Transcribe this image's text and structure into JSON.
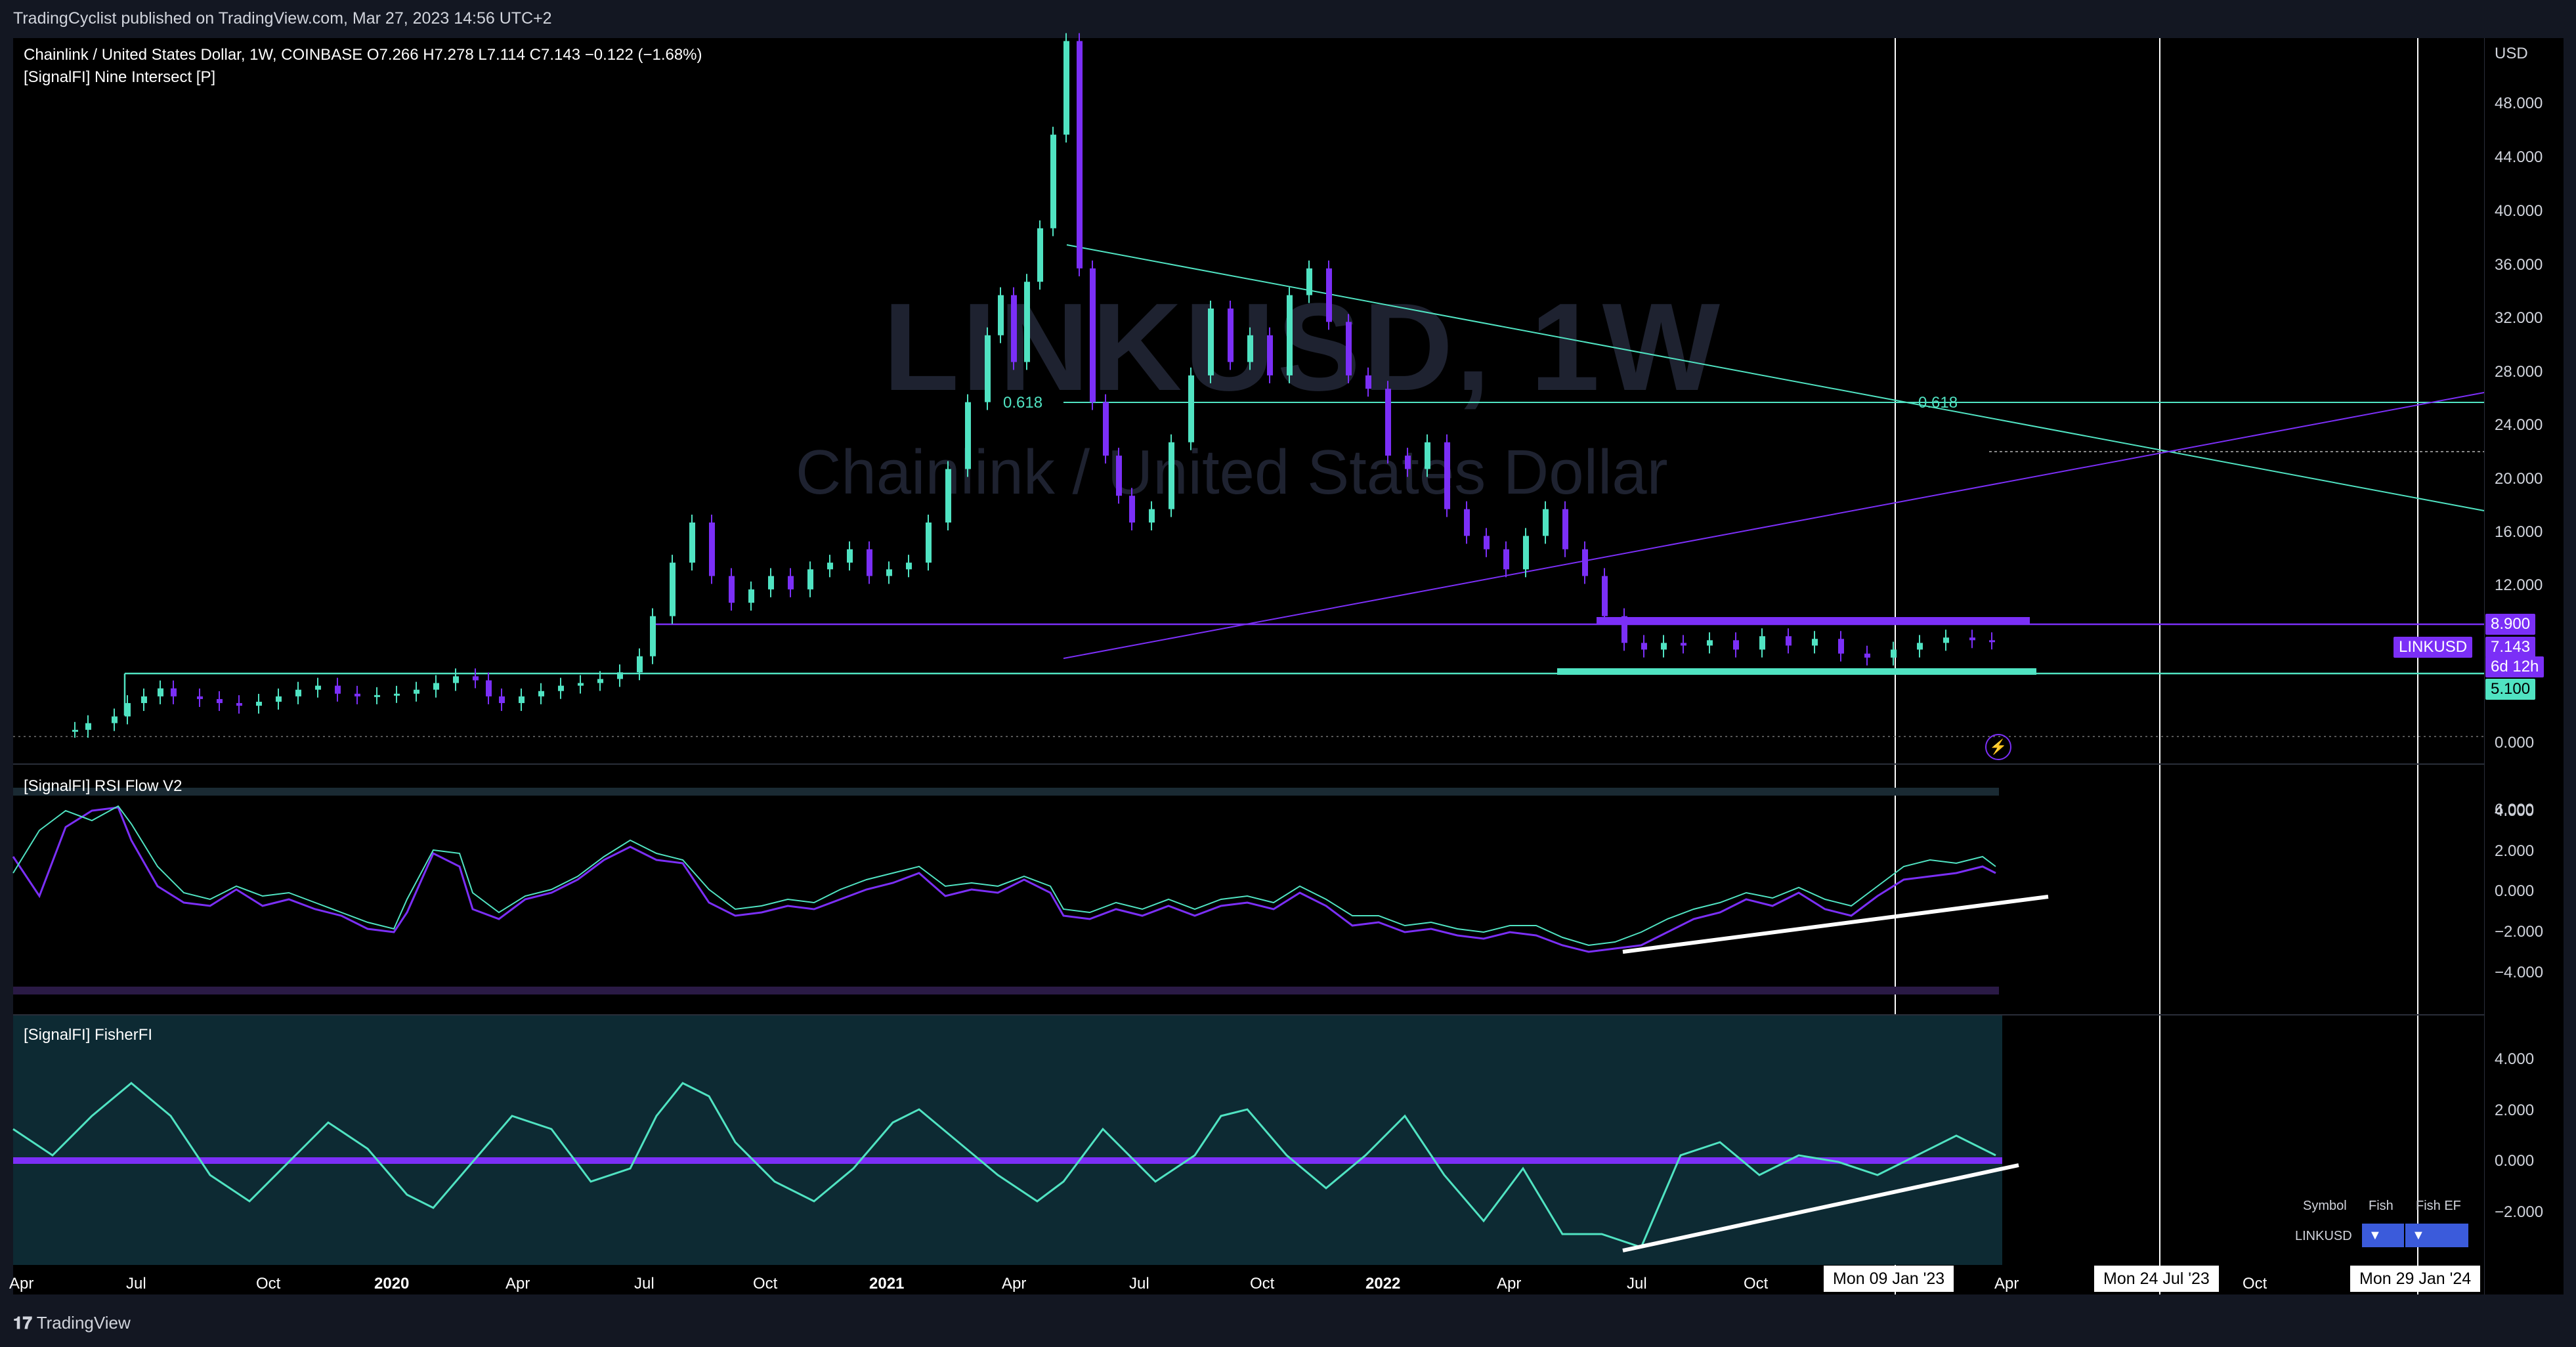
{
  "header": {
    "published_line": "TradingCyclist published on TradingView.com, Mar 27, 2023 14:56 UTC+2"
  },
  "main_chart": {
    "symbol_line": "Chainlink / United States Dollar, 1W, COINBASE",
    "open": "O7.266",
    "high": "H7.278",
    "low": "L7.114",
    "close": "C7.143",
    "change": "−0.122 (−1.68%)",
    "indicator_label": "[SignalFI] Nine Intersect [P]",
    "watermark_symbol": "LINKUSD, 1W",
    "watermark_name": "Chainlink / United States Dollar",
    "fib_label_left": "0.618",
    "fib_label_right": "0.618"
  },
  "price_axis": {
    "currency": "USD",
    "ticks": [
      "48.000",
      "44.000",
      "40.000",
      "36.000",
      "32.000",
      "28.000",
      "24.000",
      "20.000",
      "16.000",
      "12.000",
      "0.000"
    ],
    "tag_upper": "8.900",
    "tag_symbol": "LINKUSD",
    "tag_price": "7.143",
    "tag_countdown": "6d 12h",
    "tag_lower": "5.100"
  },
  "rsi_pane": {
    "label": "[SignalFI] RSI Flow V2",
    "ticks": [
      "6.000",
      "4.000",
      "2.000",
      "0.000",
      "−2.000",
      "−4.000"
    ]
  },
  "fisher_pane": {
    "label": "[SignalFI] FisherFI",
    "ticks": [
      "4.000",
      "2.000",
      "0.000",
      "−2.000"
    ]
  },
  "info_table": {
    "col_symbol": "Symbol",
    "col_fish": "Fish",
    "col_fish_ef": "Fish EF",
    "row_symbol": "LINKUSD",
    "fish_arrow": "▼",
    "fish_ef_arrow": "▼"
  },
  "time_axis": {
    "labels": [
      "Apr",
      "Jul",
      "Oct",
      "2020",
      "Apr",
      "Jul",
      "Oct",
      "2021",
      "Apr",
      "Jul",
      "Oct",
      "2022",
      "Apr",
      "Jul",
      "Oct",
      "Apr",
      "Oct"
    ],
    "tag_1": "Mon 09 Jan '23",
    "tag_2": "Mon 24 Jul '23",
    "tag_3": "Mon 29 Jan '24"
  },
  "footer": {
    "brand": "TradingView"
  },
  "colors": {
    "bull": "#50e3c2",
    "bear": "#7b2ff7",
    "background": "#000000",
    "panel": "#131722"
  }
}
